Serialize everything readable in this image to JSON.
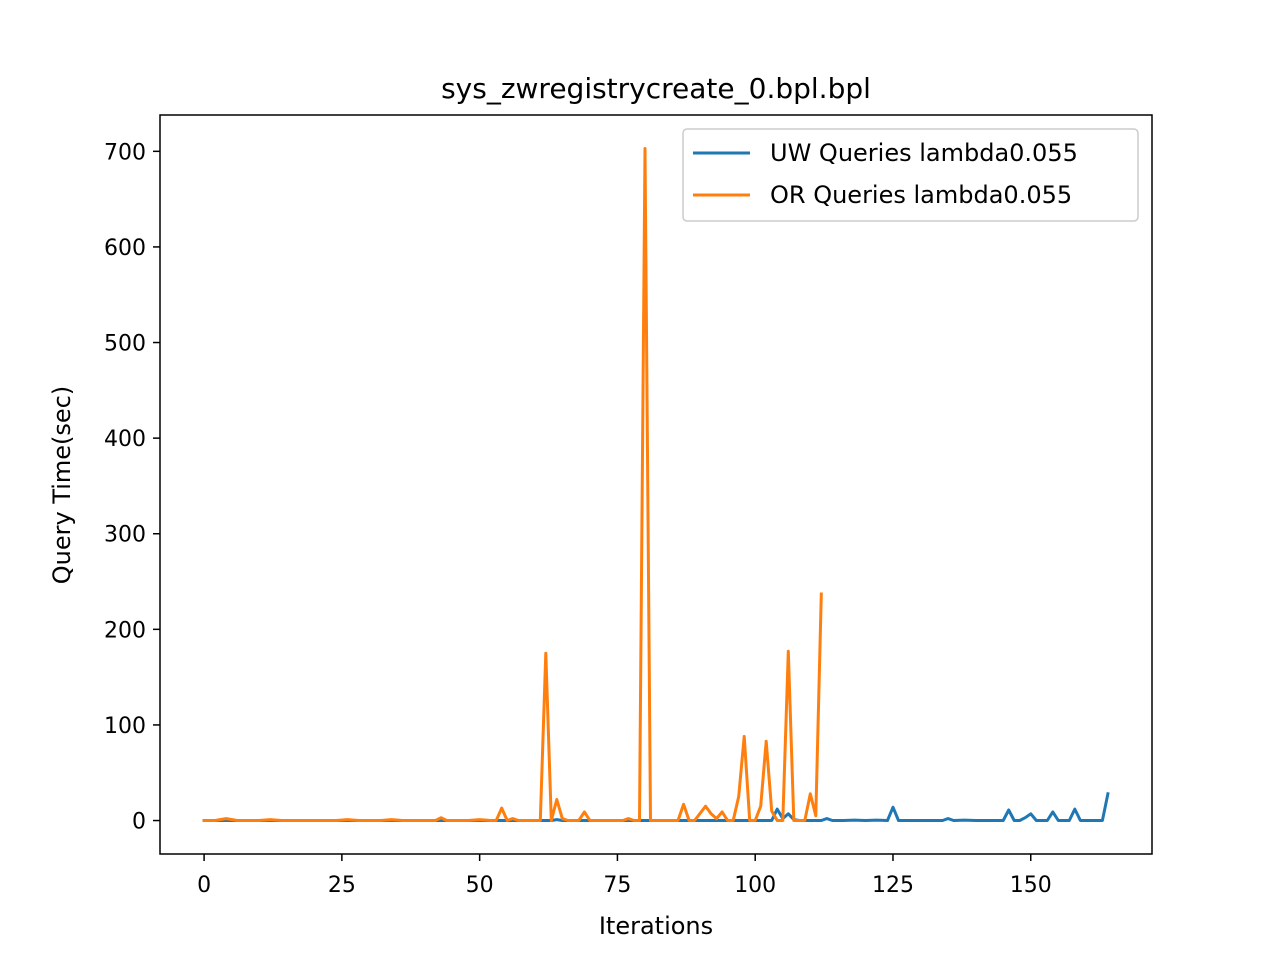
{
  "chart_data": {
    "type": "line",
    "title": "sys_zwregistrycreate_0.bpl.bpl",
    "xlabel": "Iterations",
    "ylabel": "Query Time(sec)",
    "xlim": [
      -8,
      172
    ],
    "ylim": [
      -35,
      738
    ],
    "xticks": [
      0,
      25,
      50,
      75,
      100,
      125,
      150
    ],
    "yticks": [
      0,
      100,
      200,
      300,
      400,
      500,
      600,
      700
    ],
    "grid": false,
    "legend_position": "upper right",
    "series": [
      {
        "name": "UW Queries lambda0.055",
        "color": "#1f77b4",
        "x": [
          0,
          2,
          4,
          6,
          8,
          10,
          12,
          14,
          16,
          18,
          20,
          22,
          24,
          26,
          28,
          30,
          32,
          34,
          36,
          38,
          40,
          42,
          44,
          46,
          48,
          50,
          52,
          54,
          56,
          58,
          60,
          62,
          63,
          64,
          65,
          66,
          68,
          70,
          72,
          74,
          76,
          78,
          80,
          82,
          84,
          86,
          88,
          90,
          92,
          94,
          96,
          98,
          100,
          102,
          103,
          104,
          105,
          106,
          107,
          108,
          110,
          112,
          113,
          114,
          116,
          118,
          120,
          122,
          124,
          125,
          126,
          128,
          130,
          132,
          134,
          135,
          136,
          138,
          140,
          142,
          144,
          145,
          146,
          147,
          148,
          149,
          150,
          151,
          152,
          153,
          154,
          155,
          156,
          157,
          158,
          159,
          160,
          162,
          163,
          164
        ],
        "y": [
          0,
          0,
          0,
          0,
          0,
          0,
          0,
          0,
          0,
          0,
          0,
          0,
          0,
          0,
          0,
          0,
          0,
          0,
          0,
          0,
          0,
          0,
          0,
          0,
          0,
          0,
          0,
          0,
          0,
          0,
          0,
          0,
          0,
          1,
          0,
          0,
          0,
          0,
          0,
          0,
          0,
          0,
          0,
          0,
          0,
          0,
          0,
          0,
          0,
          0,
          0,
          0,
          0,
          0,
          0,
          12,
          2,
          7,
          1,
          0,
          0,
          0,
          2,
          0,
          0,
          0.5,
          0,
          0.5,
          0,
          14,
          0,
          0,
          0,
          0,
          0,
          2,
          0,
          0.5,
          0,
          0,
          0,
          0,
          11,
          0,
          0,
          3,
          7,
          0,
          0,
          0,
          9,
          0,
          0,
          0,
          12,
          0,
          0,
          0,
          0,
          28
        ]
      },
      {
        "name": "OR Queries lambda0.055",
        "color": "#ff7f0e",
        "x": [
          0,
          2,
          4,
          6,
          8,
          10,
          12,
          14,
          16,
          18,
          20,
          22,
          24,
          26,
          28,
          30,
          32,
          34,
          36,
          38,
          40,
          42,
          43,
          44,
          46,
          48,
          50,
          52,
          53,
          54,
          55,
          56,
          57,
          58,
          60,
          61,
          62,
          63,
          64,
          65,
          66,
          68,
          69,
          70,
          72,
          74,
          76,
          77,
          78,
          79,
          80,
          81,
          82,
          84,
          86,
          87,
          88,
          89,
          91,
          92,
          93,
          94,
          95,
          96,
          97,
          98,
          99,
          100,
          101,
          102,
          103,
          104,
          105,
          106,
          107,
          108,
          109,
          110,
          111,
          112
        ],
        "y": [
          0,
          0,
          2,
          0,
          0,
          0,
          1,
          0,
          0,
          0,
          0,
          0,
          0,
          1,
          0,
          0,
          0,
          1,
          0,
          0,
          0,
          0,
          3,
          0,
          0,
          0,
          1,
          0,
          0,
          13,
          0,
          2,
          0,
          0,
          0,
          0,
          175,
          0,
          22,
          2,
          0,
          0,
          9,
          0,
          0,
          0,
          0,
          2,
          0,
          0,
          703,
          0,
          0,
          0,
          0,
          17,
          0,
          0,
          15,
          7,
          2,
          9,
          0,
          0,
          25,
          88,
          0,
          0,
          15,
          83,
          10,
          0,
          0,
          177,
          0,
          0,
          0,
          28,
          5,
          237
        ]
      }
    ]
  }
}
